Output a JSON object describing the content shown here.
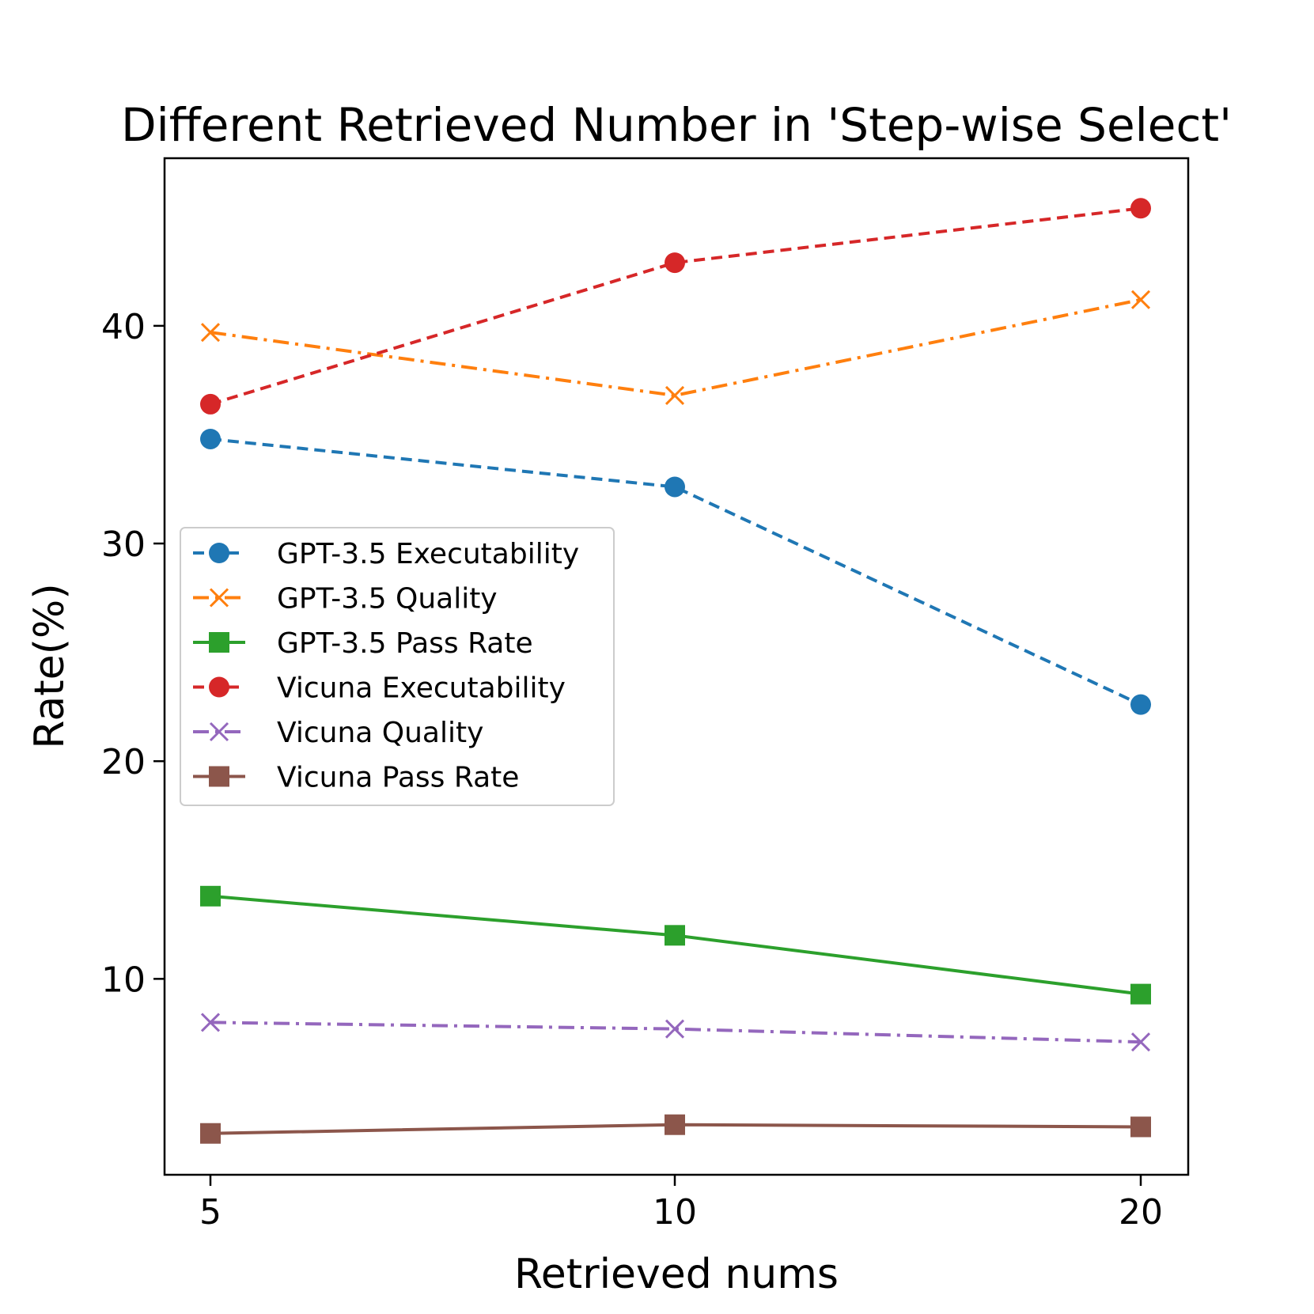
{
  "chart_data": {
    "type": "line",
    "title": "Different Retrieved Number in 'Step-wise Select'",
    "xlabel": "Retrieved nums",
    "ylabel": "Rate(%)",
    "x": [
      5,
      10,
      20
    ],
    "x_tick_labels": [
      "5",
      "10",
      "20"
    ],
    "y_ticks": [
      10,
      20,
      30,
      40
    ],
    "ylim": [
      1,
      47.7
    ],
    "grid": false,
    "legend_position": "center-left",
    "series": [
      {
        "name": "GPT-3.5 Executability",
        "values": [
          34.8,
          32.6,
          22.6
        ],
        "color": "#1f77b4",
        "linestyle": "dashed",
        "marker": "circle"
      },
      {
        "name": "GPT-3.5 Quality",
        "values": [
          39.7,
          36.8,
          41.2
        ],
        "color": "#ff7f0e",
        "linestyle": "dashdot",
        "marker": "x"
      },
      {
        "name": "GPT-3.5 Pass Rate",
        "values": [
          13.8,
          12.0,
          9.3
        ],
        "color": "#2ca02c",
        "linestyle": "solid",
        "marker": "square"
      },
      {
        "name": "Vicuna Executability",
        "values": [
          36.4,
          42.9,
          45.4
        ],
        "color": "#d62728",
        "linestyle": "dashed",
        "marker": "circle"
      },
      {
        "name": "Vicuna Quality",
        "values": [
          8.0,
          7.7,
          7.1
        ],
        "color": "#9467bd",
        "linestyle": "dashdot",
        "marker": "x"
      },
      {
        "name": "Vicuna Pass Rate",
        "values": [
          2.9,
          3.3,
          3.2
        ],
        "color": "#8c564b",
        "linestyle": "solid",
        "marker": "square"
      }
    ]
  }
}
